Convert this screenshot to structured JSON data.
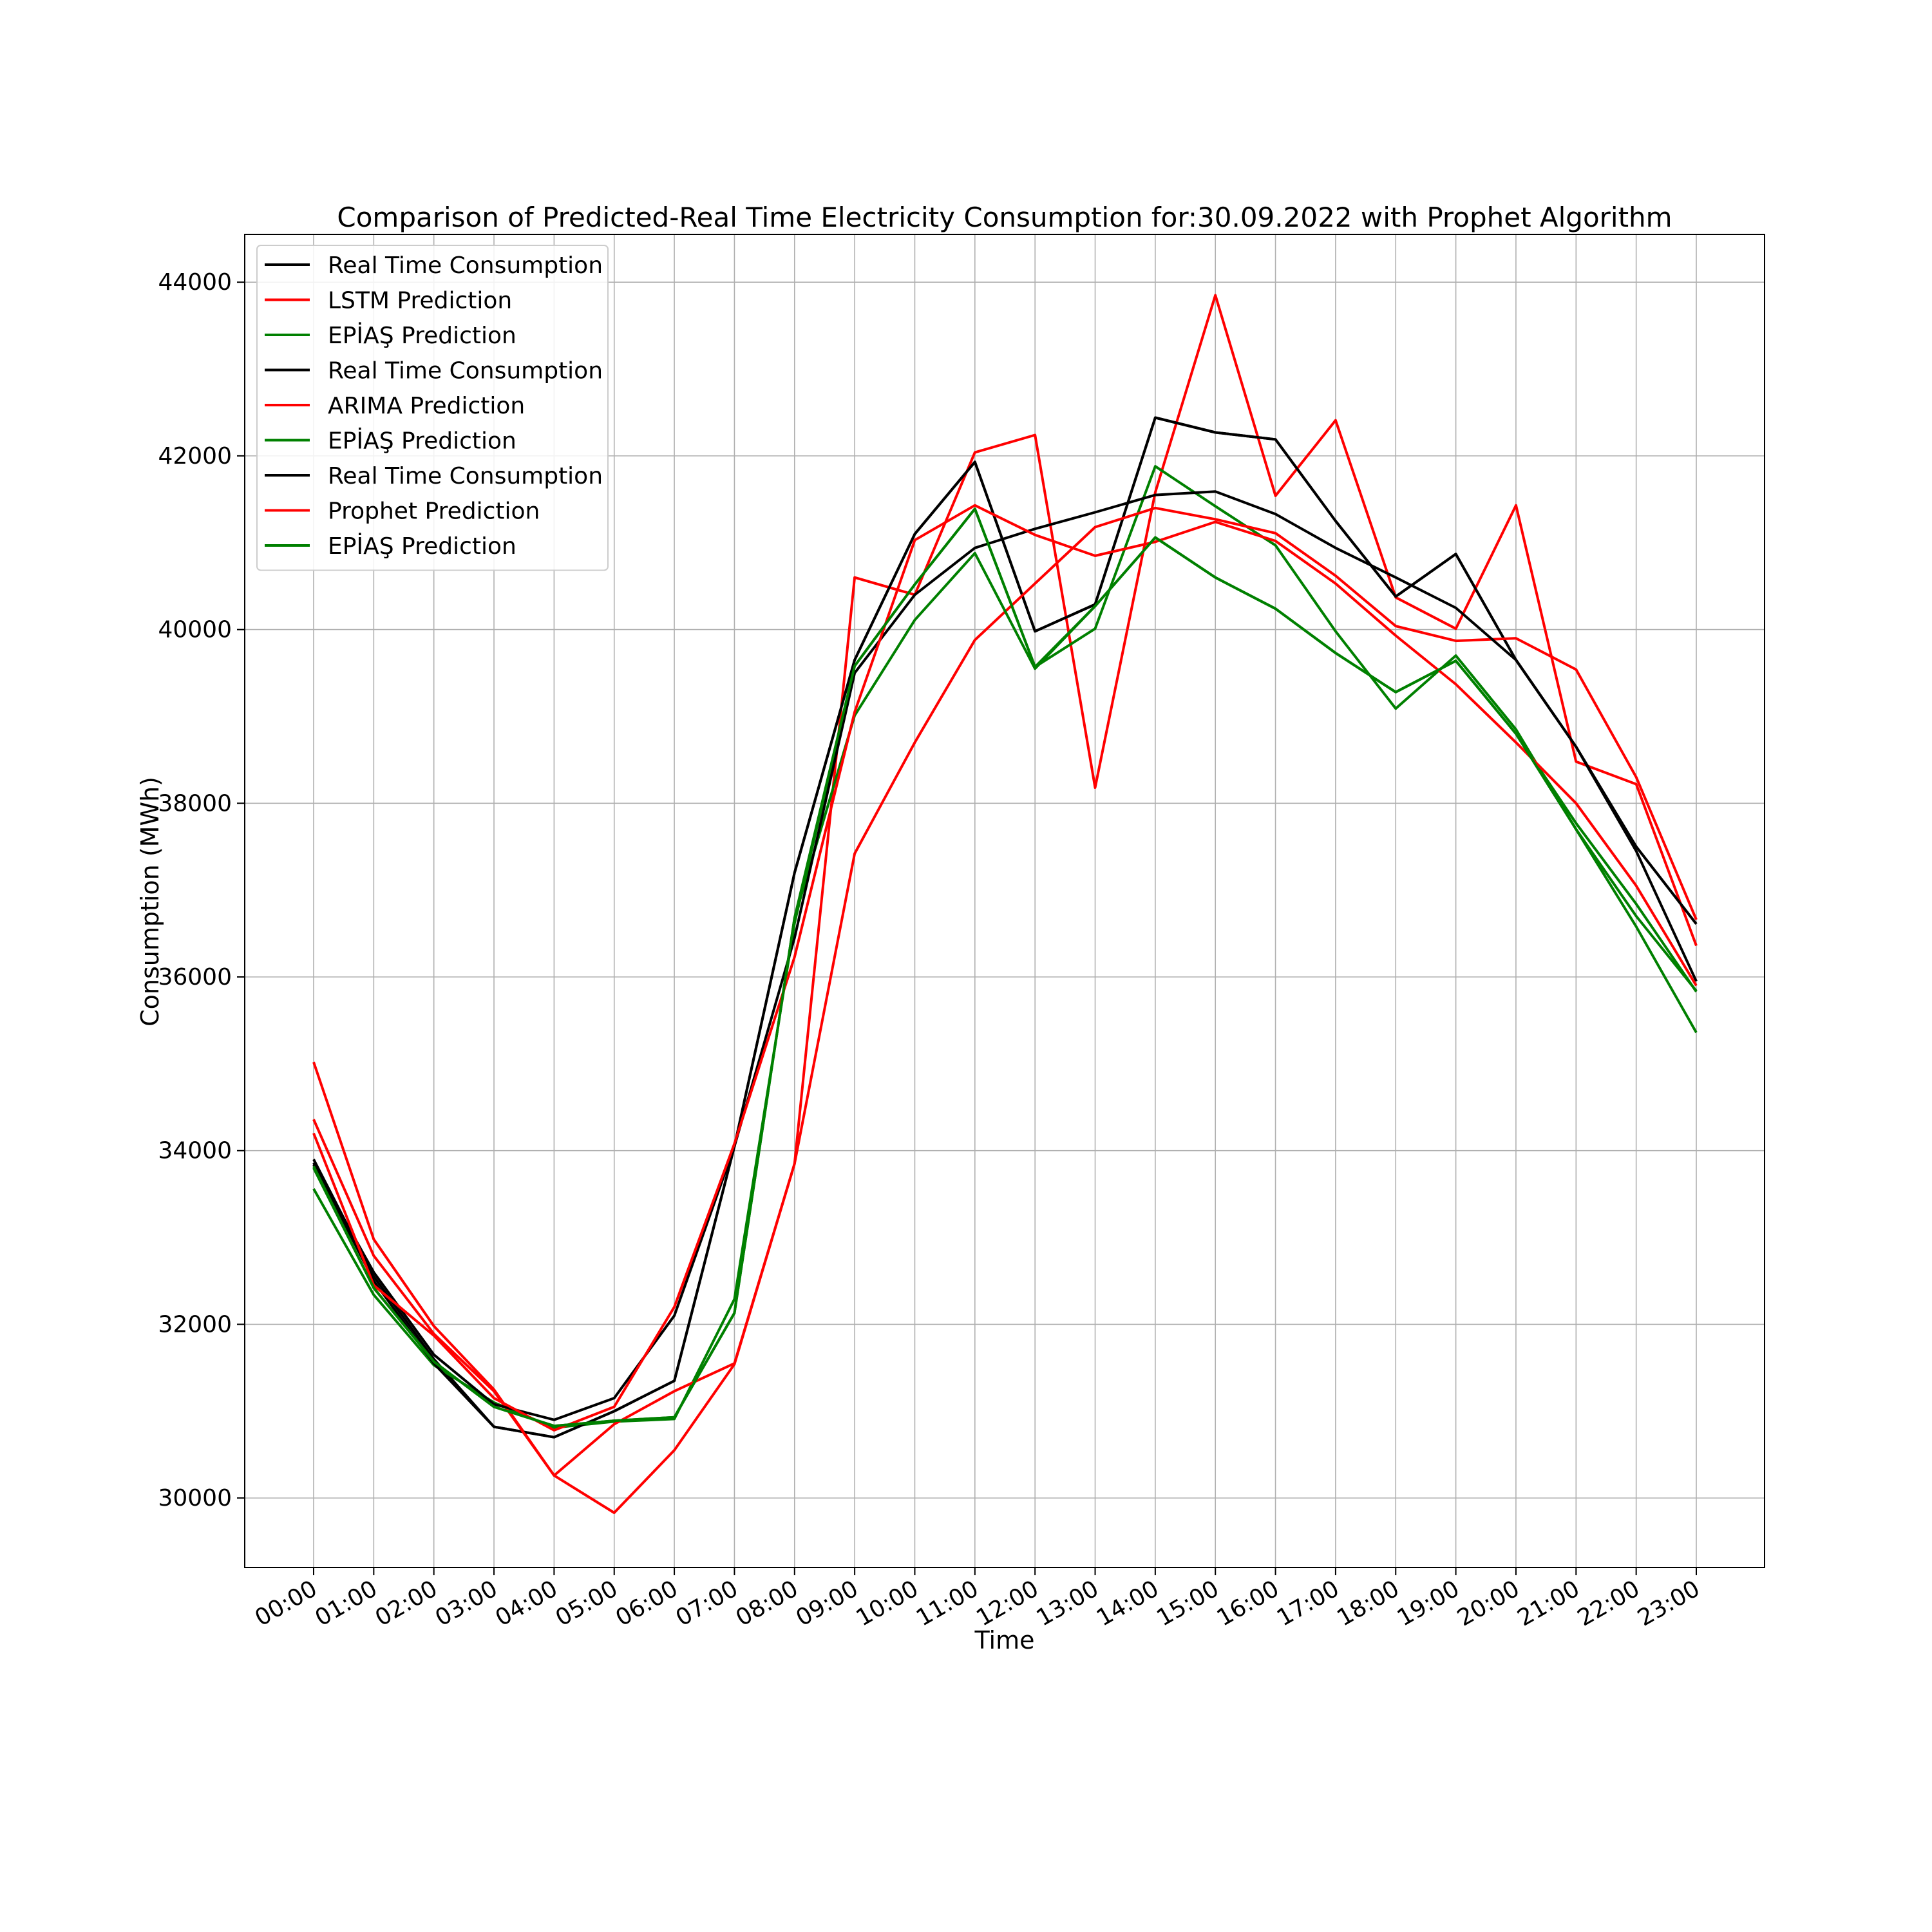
{
  "chart_data": {
    "type": "line",
    "title": "Comparison of Predicted-Real Time Electricity Consumption for:30.09.2022 with Prophet Algorithm",
    "xlabel": "Time",
    "ylabel": "Consumption (MWh)",
    "ylim": [
      29200,
      44550
    ],
    "yticks": [
      30000,
      32000,
      34000,
      36000,
      38000,
      40000,
      42000,
      44000
    ],
    "grid": true,
    "legend_position": "upper-left",
    "categories": [
      "00:00",
      "01:00",
      "02:00",
      "03:00",
      "04:00",
      "05:00",
      "06:00",
      "07:00",
      "08:00",
      "09:00",
      "10:00",
      "11:00",
      "12:00",
      "13:00",
      "14:00",
      "15:00",
      "16:00",
      "17:00",
      "18:00",
      "19:00",
      "20:00",
      "21:00",
      "22:00",
      "23:00"
    ],
    "series": [
      {
        "name": "Real Time Consumption",
        "color": "#000000",
        "values": [
          33900,
          32550,
          31600,
          30820,
          30700,
          31000,
          31350,
          34050,
          37200,
          39650,
          41100,
          41930,
          39980,
          40290,
          42440,
          42270,
          42190,
          41250,
          40380,
          40870,
          39650,
          38650,
          37500,
          36610
        ]
      },
      {
        "name": "LSTM Prediction",
        "color": "#ff0000",
        "values": [
          35020,
          32980,
          31980,
          31250,
          30260,
          29830,
          30550,
          31540,
          33850,
          40600,
          40400,
          42040,
          42240,
          38180,
          41580,
          43850,
          41540,
          42410,
          40370,
          40010,
          41430,
          38480,
          38220,
          36360
        ]
      },
      {
        "name": "EPİAŞ Prediction",
        "color": "#008000",
        "values": [
          33560,
          32340,
          31530,
          31100,
          30810,
          30880,
          30910,
          32290,
          36620,
          39580,
          40520,
          41390,
          39570,
          40010,
          41880,
          41420,
          40970,
          39980,
          39090,
          39700,
          38850,
          37700,
          36580,
          35360
        ]
      },
      {
        "name": "Real Time Consumption",
        "color": "#000000",
        "values": [
          33860,
          32500,
          31550,
          30820,
          30700,
          31000,
          31350,
          34050,
          37200,
          39650,
          41100,
          41930,
          39980,
          40290,
          42440,
          42270,
          42190,
          41250,
          40380,
          40870,
          39650,
          38650,
          37500,
          36610
        ]
      },
      {
        "name": "ARIMA Prediction",
        "color": "#ff0000",
        "values": [
          34360,
          32790,
          31890,
          31230,
          30260,
          30850,
          31230,
          31550,
          33850,
          37420,
          38700,
          39880,
          40530,
          41180,
          41400,
          41270,
          41110,
          40620,
          40040,
          39870,
          39900,
          39540,
          38300,
          36660
        ]
      },
      {
        "name": "EPİAŞ Prediction",
        "color": "#008000",
        "values": [
          33800,
          32420,
          31570,
          31050,
          30830,
          30890,
          30930,
          32130,
          36680,
          39010,
          40110,
          40880,
          39550,
          40270,
          41060,
          40600,
          40240,
          39730,
          39280,
          39640,
          38800,
          37770,
          36840,
          35830
        ]
      },
      {
        "name": "Real Time Consumption",
        "color": "#000000",
        "values": [
          33840,
          32600,
          31650,
          31080,
          30900,
          31150,
          32100,
          34050,
          36450,
          39500,
          40400,
          40940,
          41160,
          41350,
          41550,
          41590,
          41330,
          40940,
          40600,
          40250,
          39650,
          38650,
          37450,
          35950
        ]
      },
      {
        "name": "Prophet Prediction",
        "color": "#ff0000",
        "values": [
          34200,
          32450,
          31870,
          31150,
          30780,
          31050,
          32200,
          34080,
          36230,
          39050,
          41030,
          41430,
          41090,
          40850,
          41010,
          41240,
          41020,
          40530,
          39930,
          39370,
          38700,
          38000,
          37050,
          35900
        ]
      },
      {
        "name": "EPİAŞ Prediction",
        "color": "#008000",
        "values": [
          33820,
          32420,
          31570,
          31050,
          30830,
          30890,
          30930,
          32130,
          36680,
          39580,
          40520,
          41390,
          39570,
          40270,
          41060,
          40600,
          40240,
          39730,
          39280,
          39640,
          38800,
          37700,
          36700,
          35840
        ]
      }
    ]
  }
}
